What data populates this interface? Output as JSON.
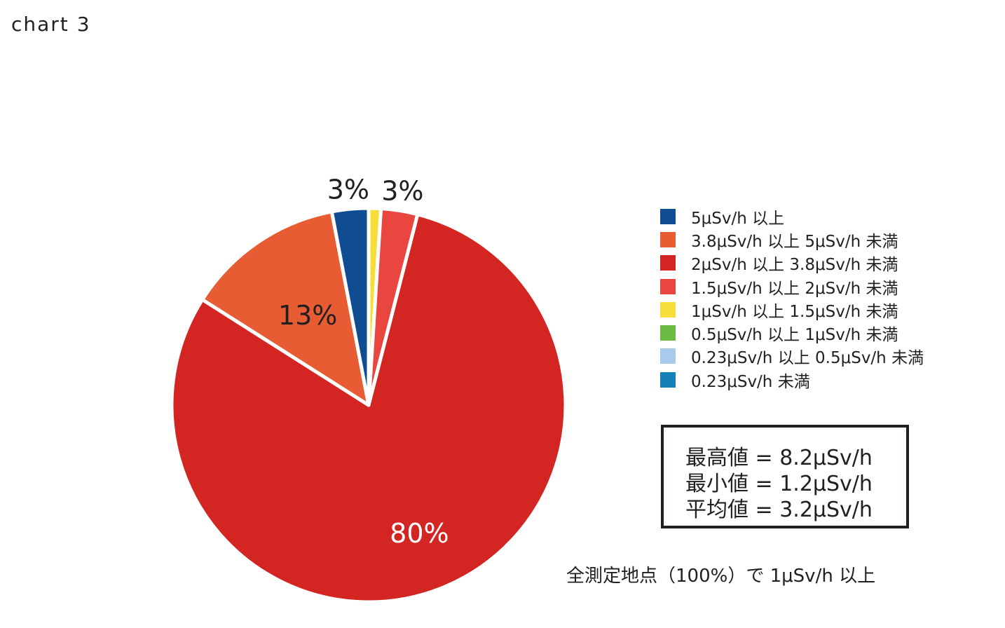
{
  "page": {
    "title": "chart 3"
  },
  "chart_data": {
    "type": "pie",
    "title": "",
    "categories": [
      "5μSv/h 以上",
      "3.8μSv/h 以上 5μSv/h 未満",
      "2μSv/h 以上 3.8μSv/h 未満",
      "1.5μSv/h 以上 2μSv/h 未満",
      "1μSv/h 以上 1.5μSv/h 未満",
      "0.5μSv/h 以上 1μSv/h 未満",
      "0.23μSv/h 以上 0.5μSv/h 未満",
      "0.23μSv/h 未満"
    ],
    "colors": [
      "#0f4c92",
      "#e85c33",
      "#d32522",
      "#e8463f",
      "#f7dd3a",
      "#6cb943",
      "#a7cbea",
      "#1680b9"
    ],
    "values": [
      3,
      13,
      80,
      3,
      1,
      0,
      0,
      0
    ],
    "data_labels": [
      {
        "text": "3%",
        "value": 3
      },
      {
        "text": "13%",
        "value": 13
      },
      {
        "text": "80%",
        "value": 80
      },
      {
        "text": "3%",
        "value": 3
      }
    ],
    "start": "top",
    "direction": "clockwise",
    "legend_position": "right"
  },
  "stats": {
    "max": "最高値 = 8.2μSv/h",
    "min": "最小値 = 1.2μSv/h",
    "avg": "平均値 = 3.2μSv/h"
  },
  "footnote": "全測定地点（100%）で 1μSv/h 以上"
}
